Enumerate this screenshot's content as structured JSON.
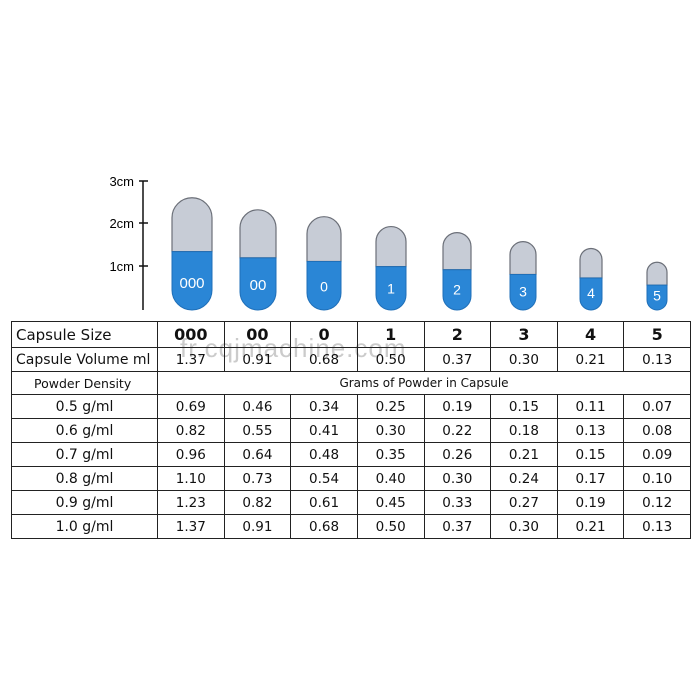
{
  "ruler": {
    "ticks": [
      "3cm",
      "2cm",
      "1cm"
    ]
  },
  "capsules": [
    {
      "label": "000",
      "size_cm": 2.61
    },
    {
      "label": "00",
      "size_cm": 2.33
    },
    {
      "label": "0",
      "size_cm": 2.17
    },
    {
      "label": "1",
      "size_cm": 1.94
    },
    {
      "label": "2",
      "size_cm": 1.8
    },
    {
      "label": "3",
      "size_cm": 1.59
    },
    {
      "label": "4",
      "size_cm": 1.43
    },
    {
      "label": "5",
      "size_cm": 1.11
    }
  ],
  "colors": {
    "cap": "#c7ccd6",
    "body": "#2a86d6",
    "outline": "#6b6f78"
  },
  "table": {
    "size_label": "Capsule Size",
    "sizes": [
      "000",
      "00",
      "0",
      "1",
      "2",
      "3",
      "4",
      "5"
    ],
    "volume_label": "Capsule Volume ml",
    "volumes": [
      "1.37",
      "0.91",
      "0.68",
      "0.50",
      "0.37",
      "0.30",
      "0.21",
      "0.13"
    ],
    "density_label": "Powder Density",
    "grams_label": "Grams of Powder in Capsule",
    "rows": [
      {
        "density": "0.5 g/ml",
        "values": [
          "0.69",
          "0.46",
          "0.34",
          "0.25",
          "0.19",
          "0.15",
          "0.11",
          "0.07"
        ]
      },
      {
        "density": "0.6 g/ml",
        "values": [
          "0.82",
          "0.55",
          "0.41",
          "0.30",
          "0.22",
          "0.18",
          "0.13",
          "0.08"
        ]
      },
      {
        "density": "0.7 g/ml",
        "values": [
          "0.96",
          "0.64",
          "0.48",
          "0.35",
          "0.26",
          "0.21",
          "0.15",
          "0.09"
        ]
      },
      {
        "density": "0.8 g/ml",
        "values": [
          "1.10",
          "0.73",
          "0.54",
          "0.40",
          "0.30",
          "0.24",
          "0.17",
          "0.10"
        ]
      },
      {
        "density": "0.9 g/ml",
        "values": [
          "1.23",
          "0.82",
          "0.61",
          "0.45",
          "0.33",
          "0.27",
          "0.19",
          "0.12"
        ]
      },
      {
        "density": "1.0 g/ml",
        "values": [
          "1.37",
          "0.91",
          "0.68",
          "0.50",
          "0.37",
          "0.30",
          "0.21",
          "0.13"
        ]
      }
    ]
  },
  "watermark": "fr.cqjmachine.com"
}
